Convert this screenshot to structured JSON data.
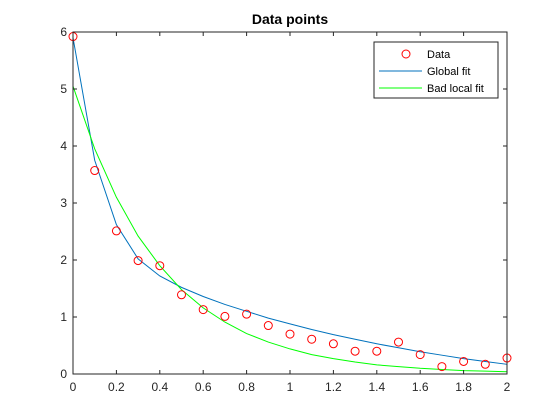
{
  "chart_data": {
    "type": "scatter",
    "title": "Data points",
    "xlabel": "",
    "ylabel": "",
    "xlim": [
      0,
      2
    ],
    "ylim": [
      0,
      6
    ],
    "xticks": [
      "0",
      "0.2",
      "0.4",
      "0.6",
      "0.8",
      "1",
      "1.2",
      "1.4",
      "1.6",
      "1.8",
      "2"
    ],
    "yticks": [
      "0",
      "1",
      "2",
      "3",
      "4",
      "5",
      "6"
    ],
    "xtick_values": [
      0,
      0.2,
      0.4,
      0.6,
      0.8,
      1,
      1.2,
      1.4,
      1.6,
      1.8,
      2
    ],
    "ytick_values": [
      0,
      1,
      2,
      3,
      4,
      5,
      6
    ],
    "grid": false,
    "legend_position": "top-right",
    "series": [
      {
        "name": "Data",
        "kind": "markers",
        "marker": "circle",
        "color": "#ff0000",
        "x": [
          0,
          0.1,
          0.2,
          0.3,
          0.4,
          0.5,
          0.6,
          0.7,
          0.8,
          0.9,
          1.0,
          1.1,
          1.2,
          1.3,
          1.4,
          1.5,
          1.6,
          1.7,
          1.8,
          1.9,
          2.0
        ],
        "y": [
          5.92,
          3.57,
          2.51,
          1.99,
          1.9,
          1.39,
          1.13,
          1.01,
          1.05,
          0.85,
          0.7,
          0.61,
          0.53,
          0.4,
          0.4,
          0.56,
          0.34,
          0.13,
          0.22,
          0.17,
          0.28
        ]
      },
      {
        "name": "Global fit",
        "kind": "line",
        "color": "#0072bd",
        "x": [
          0,
          0.1,
          0.2,
          0.3,
          0.4,
          0.5,
          0.6,
          0.7,
          0.8,
          0.9,
          1.0,
          1.1,
          1.2,
          1.3,
          1.4,
          1.5,
          1.6,
          1.7,
          1.8,
          1.9,
          2.0
        ],
        "y": [
          5.9,
          3.75,
          2.62,
          2.02,
          1.72,
          1.52,
          1.36,
          1.22,
          1.1,
          0.98,
          0.88,
          0.78,
          0.69,
          0.61,
          0.53,
          0.46,
          0.39,
          0.33,
          0.27,
          0.22,
          0.17
        ]
      },
      {
        "name": "Bad local fit",
        "kind": "line",
        "color": "#00ff00",
        "x": [
          0,
          0.1,
          0.2,
          0.3,
          0.4,
          0.5,
          0.6,
          0.7,
          0.8,
          0.9,
          1.0,
          1.1,
          1.2,
          1.3,
          1.4,
          1.5,
          1.6,
          1.7,
          1.8,
          1.9,
          2.0
        ],
        "y": [
          5.05,
          3.95,
          3.1,
          2.42,
          1.9,
          1.48,
          1.16,
          0.91,
          0.71,
          0.56,
          0.44,
          0.34,
          0.27,
          0.21,
          0.16,
          0.13,
          0.1,
          0.08,
          0.06,
          0.05,
          0.04
        ]
      }
    ]
  }
}
